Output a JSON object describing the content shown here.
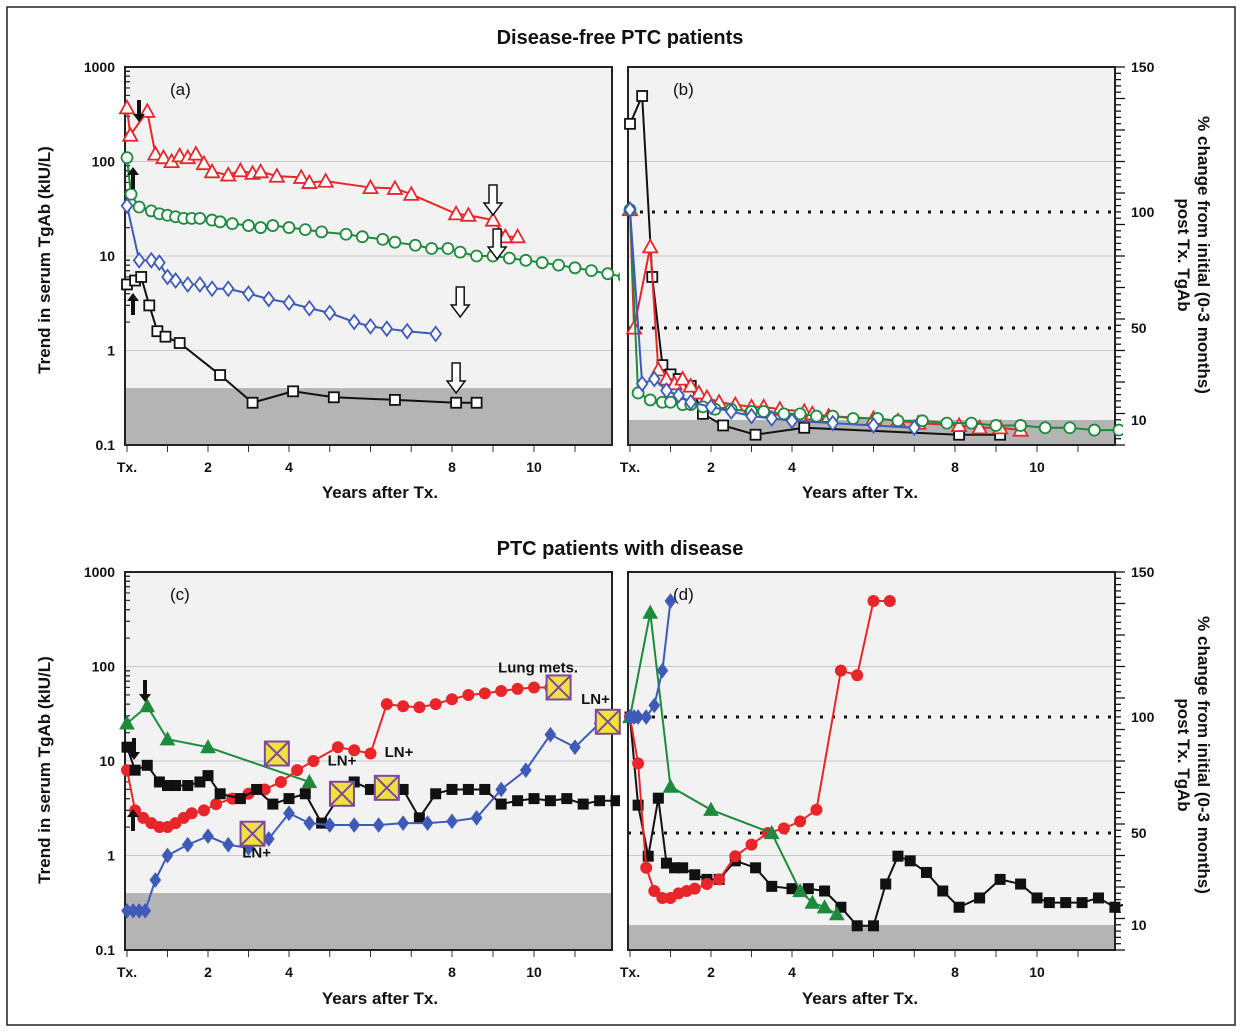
{
  "figure": {
    "top_title": "Disease-free PTC patients",
    "bottom_title": "PTC patients with disease",
    "x_axis_label": "Years after Tx.",
    "left_axis_label": "Trend in serum TgAb (kIU/L)",
    "right_axis_label_line1": "% change from initial (0-3 months)",
    "right_axis_label_line2": "post Tx. TgAb",
    "x_ticks": [
      "Tx.",
      "2",
      "4",
      "8",
      "10"
    ],
    "left_y_ticks": [
      "1000",
      "100",
      "10",
      "1",
      "0.1"
    ],
    "right_y_ticks": [
      "150",
      "100",
      "50",
      "10"
    ],
    "colors": {
      "red": "#e8262a",
      "green": "#1e8a3c",
      "blue": "#3e5bb8",
      "black": "#111111",
      "shade": "#b4b4b4",
      "panel_bg": "#f2f2f2",
      "marker_yellow": "#f2e13a"
    }
  },
  "chart_data": [
    {
      "panel": "(a)",
      "type": "line",
      "x_unit": "years after Tx. (tick marks at Tx., 2, 4, 8, 10)",
      "y_scale": "log",
      "ylim": [
        0.1,
        1000
      ],
      "shaded_band_y": [
        0.1,
        0.4
      ],
      "series": [
        {
          "color": "red",
          "marker": "triangle-open",
          "x": [
            0,
            0.08,
            0.5,
            0.7,
            0.9,
            1.1,
            1.3,
            1.5,
            1.7,
            1.9,
            2.1,
            2.5,
            2.8,
            3.1,
            3.3,
            3.7,
            4.3,
            4.5,
            4.9,
            6.0,
            6.6,
            7.0,
            8.1,
            8.4,
            9.0,
            9.3,
            9.6
          ],
          "y": [
            370,
            190,
            340,
            120,
            110,
            100,
            115,
            110,
            120,
            95,
            78,
            72,
            80,
            75,
            78,
            70,
            68,
            60,
            62,
            53,
            52,
            45,
            28,
            27,
            24,
            16,
            16
          ]
        },
        {
          "color": "green",
          "marker": "circle-open",
          "x": [
            0,
            0.1,
            0.3,
            0.6,
            0.8,
            1.0,
            1.2,
            1.4,
            1.6,
            1.8,
            2.1,
            2.3,
            2.6,
            3.0,
            3.3,
            3.6,
            4.0,
            4.4,
            4.8,
            5.4,
            5.8,
            6.3,
            6.6,
            7.1,
            7.5,
            7.9,
            8.2,
            8.6,
            9.0,
            9.4,
            9.8,
            10.2,
            10.6,
            11.0,
            11.4,
            11.8,
            12.2
          ],
          "y": [
            110,
            45,
            33,
            30,
            28,
            27,
            26,
            25,
            25,
            25,
            24,
            23,
            22,
            21,
            20,
            21,
            20,
            19,
            18,
            17,
            16,
            15,
            14,
            13,
            12,
            12,
            11,
            10,
            10,
            9.5,
            9,
            8.5,
            8,
            7.5,
            7,
            6.5,
            6
          ]
        },
        {
          "color": "blue",
          "marker": "diamond-open",
          "x": [
            0,
            0.3,
            0.6,
            0.8,
            1.0,
            1.2,
            1.5,
            1.8,
            2.1,
            2.5,
            3.0,
            3.5,
            4.0,
            4.5,
            5.0,
            5.6,
            6.0,
            6.4,
            6.9,
            7.6
          ],
          "y": [
            34,
            9,
            9,
            8.5,
            6,
            5.5,
            5,
            5,
            4.5,
            4.5,
            4,
            3.5,
            3.2,
            2.8,
            2.5,
            2,
            1.8,
            1.7,
            1.6,
            1.5
          ]
        },
        {
          "color": "black",
          "marker": "square-open",
          "x": [
            0,
            0.2,
            0.35,
            0.55,
            0.75,
            0.95,
            1.3,
            2.3,
            3.1,
            4.1,
            5.1,
            6.6,
            8.1,
            8.6
          ],
          "y": [
            5,
            5.5,
            6,
            3,
            1.6,
            1.4,
            1.2,
            0.55,
            0.28,
            0.37,
            0.32,
            0.3,
            0.28,
            0.28
          ]
        }
      ]
    },
    {
      "panel": "(b)",
      "type": "line",
      "x_unit": "years after Tx. (tick marks at Tx., 2, 4, 8, 10)",
      "ylim": [
        0,
        150
      ],
      "reference_lines": [
        100,
        50
      ],
      "series": [
        {
          "color": "black",
          "marker": "square-open",
          "x": [
            0,
            0.3,
            0.55,
            0.8,
            1.0,
            1.2,
            1.5,
            1.8,
            2.3,
            3.1,
            4.3,
            8.1,
            9.1
          ],
          "y": [
            138,
            150,
            72,
            34,
            30,
            28,
            25,
            13,
            8,
            4,
            7,
            4,
            4
          ]
        },
        {
          "color": "red",
          "marker": "triangle-open",
          "x": [
            0,
            0.1,
            0.5,
            0.7,
            0.9,
            1.1,
            1.3,
            1.5,
            1.7,
            1.9,
            2.2,
            2.6,
            3.0,
            3.3,
            3.7,
            4.3,
            4.5,
            4.9,
            6.0,
            6.6,
            7.1,
            8.1,
            8.6,
            9.1,
            9.6
          ],
          "y": [
            101,
            50,
            85,
            32,
            28,
            26,
            28,
            25,
            22,
            20,
            18,
            17,
            16,
            16,
            15,
            14,
            13,
            12,
            11,
            10,
            9,
            8,
            7,
            7,
            6
          ]
        },
        {
          "color": "green",
          "marker": "circle-open",
          "x": [
            0,
            0.2,
            0.5,
            0.8,
            1.0,
            1.3,
            1.5,
            1.8,
            2.1,
            2.5,
            3.0,
            3.3,
            3.8,
            4.2,
            4.6,
            5.0,
            5.5,
            6.1,
            6.6,
            7.2,
            7.8,
            8.4,
            9.0,
            9.6,
            10.2,
            10.8,
            11.4,
            12.0
          ],
          "y": [
            101,
            22,
            19,
            18,
            18,
            17,
            17,
            16,
            15,
            15,
            14,
            14,
            13,
            13,
            12,
            12,
            11,
            11,
            10,
            10,
            9,
            9,
            8,
            8,
            7,
            7,
            6,
            6
          ]
        },
        {
          "color": "blue",
          "marker": "diamond-open",
          "x": [
            0,
            0.3,
            0.6,
            0.9,
            1.2,
            1.5,
            2.0,
            2.5,
            3.0,
            3.5,
            4.0,
            5.0,
            6.0,
            7.0
          ],
          "y": [
            101,
            26,
            28,
            23,
            21,
            18,
            16,
            14,
            12,
            11,
            10,
            9,
            8,
            7
          ]
        }
      ]
    },
    {
      "panel": "(c)",
      "type": "line",
      "x_unit": "years after Tx. (tick marks at Tx., 2, 4, 8, 10)",
      "y_scale": "log",
      "ylim": [
        0.1,
        1000
      ],
      "shaded_band_y": [
        0.1,
        0.4
      ],
      "annotations": [
        "Lung mets.",
        "LN+",
        "LN+",
        "LN+",
        "LN+"
      ],
      "series": [
        {
          "color": "red",
          "marker": "circle-filled",
          "x": [
            0,
            0.2,
            0.4,
            0.6,
            0.8,
            1.0,
            1.2,
            1.4,
            1.6,
            1.9,
            2.2,
            2.6,
            3.0,
            3.4,
            3.8,
            4.2,
            4.6,
            5.2,
            5.6,
            6.0,
            6.4,
            6.8,
            7.2,
            7.6,
            8.0,
            8.4,
            8.8,
            9.2,
            9.6,
            10.0,
            10.4
          ],
          "y": [
            8,
            3,
            2.5,
            2.2,
            2,
            2,
            2.2,
            2.5,
            2.8,
            3,
            3.5,
            4,
            4.5,
            5,
            6,
            8,
            10,
            14,
            13,
            12,
            40,
            38,
            37,
            40,
            45,
            50,
            52,
            55,
            58,
            60,
            60
          ]
        },
        {
          "color": "green",
          "marker": "triangle-filled",
          "x": [
            0,
            0.5,
            1.0,
            2.0,
            4.5
          ],
          "y": [
            25,
            38,
            17,
            14,
            6
          ]
        },
        {
          "color": "black",
          "marker": "square-filled",
          "x": [
            0,
            0.2,
            0.5,
            0.8,
            1.0,
            1.2,
            1.5,
            1.8,
            2.0,
            2.3,
            2.8,
            3.2,
            3.6,
            4.0,
            4.4,
            4.8,
            5.2,
            5.6,
            6.0,
            6.4,
            6.8,
            7.2,
            7.6,
            8.0,
            8.4,
            8.8,
            9.2,
            9.6,
            10.0,
            10.4,
            10.8,
            11.2,
            11.6,
            12.0
          ],
          "y": [
            14,
            8,
            9,
            6,
            5.5,
            5.5,
            5.5,
            6,
            7,
            4.5,
            4,
            5,
            3.5,
            4,
            4.5,
            2.2,
            4,
            6,
            5,
            5.5,
            5,
            2.5,
            4.5,
            5,
            5,
            5,
            3.5,
            3.8,
            4,
            3.8,
            4,
            3.5,
            3.8,
            3.8
          ]
        },
        {
          "color": "blue",
          "marker": "diamond-filled",
          "x": [
            0,
            0.15,
            0.3,
            0.45,
            0.7,
            1.0,
            1.5,
            2.0,
            2.5,
            3.0,
            3.5,
            4.0,
            4.5,
            5.0,
            5.6,
            6.2,
            6.8,
            7.4,
            8.0,
            8.6,
            9.2,
            9.8,
            10.4,
            11.0,
            11.6
          ],
          "y": [
            0.26,
            0.26,
            0.26,
            0.26,
            0.55,
            1.0,
            1.3,
            1.6,
            1.3,
            1.2,
            1.5,
            2.8,
            2.2,
            2.1,
            2.1,
            2.1,
            2.2,
            2.2,
            2.3,
            2.5,
            5,
            8,
            19,
            14,
            25
          ]
        }
      ]
    },
    {
      "panel": "(d)",
      "type": "line",
      "x_unit": "years after Tx. (tick marks at Tx., 2, 4, 8, 10)",
      "ylim": [
        0,
        150
      ],
      "reference_lines": [
        100,
        50
      ],
      "series": [
        {
          "color": "black",
          "marker": "square-filled",
          "x": [
            0,
            0.2,
            0.45,
            0.7,
            0.9,
            1.1,
            1.3,
            1.6,
            1.9,
            2.2,
            2.6,
            3.1,
            3.5,
            4.0,
            4.4,
            4.8,
            5.2,
            5.6,
            6.0,
            6.3,
            6.6,
            6.9,
            7.3,
            7.7,
            8.1,
            8.6,
            9.1,
            9.6,
            10.0,
            10.3,
            10.7,
            11.1,
            11.5,
            11.9,
            12.3
          ],
          "y": [
            100,
            62,
            40,
            65,
            37,
            35,
            35,
            32,
            30,
            30,
            38,
            35,
            27,
            26,
            26,
            25,
            18,
            10,
            10,
            28,
            40,
            38,
            33,
            25,
            18,
            22,
            30,
            28,
            22,
            20,
            20,
            20,
            22,
            18,
            20
          ]
        },
        {
          "color": "red",
          "marker": "circle-filled",
          "x": [
            0,
            0.2,
            0.4,
            0.6,
            0.8,
            1.0,
            1.2,
            1.4,
            1.6,
            1.9,
            2.2,
            2.6,
            3.0,
            3.4,
            3.8,
            4.2,
            4.6,
            5.2,
            5.6,
            6.0,
            6.4
          ],
          "y": [
            100,
            80,
            35,
            25,
            22,
            22,
            24,
            25,
            26,
            28,
            30,
            40,
            45,
            50,
            52,
            55,
            60,
            120,
            118,
            150,
            150
          ]
        },
        {
          "color": "green",
          "marker": "triangle-filled",
          "x": [
            0,
            0.5,
            1.0,
            2.0,
            3.5,
            4.2,
            4.5,
            4.8,
            5.1
          ],
          "y": [
            100,
            145,
            70,
            60,
            50,
            25,
            20,
            18,
            15
          ]
        },
        {
          "color": "blue",
          "marker": "diamond-filled",
          "x": [
            0,
            0.1,
            0.2,
            0.4,
            0.6,
            0.8,
            1.0
          ],
          "y": [
            100,
            100,
            100,
            100,
            105,
            120,
            150
          ]
        }
      ]
    }
  ]
}
